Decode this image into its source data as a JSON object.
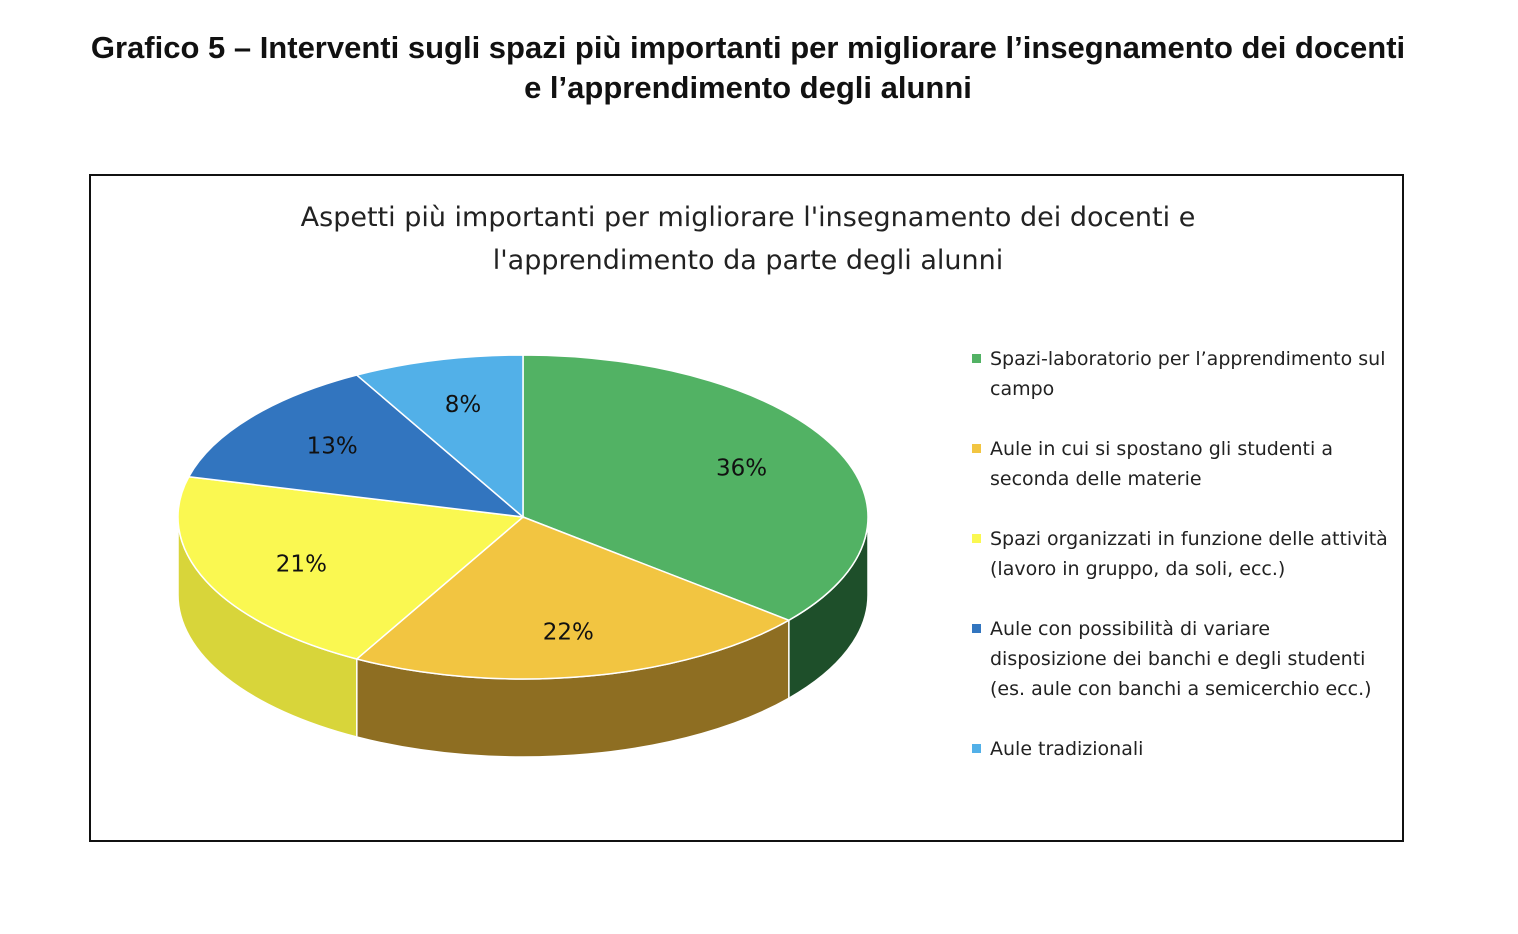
{
  "document_title": [
    "Grafico 5 – Interventi sugli spazi più importanti per migliorare l’insegnamento dei docenti",
    "e l’apprendimento degli alunni"
  ],
  "chart_data": {
    "type": "pie",
    "title": [
      "Aspetti più importanti per migliorare l'insegnamento dei docenti e",
      "l'apprendimento da parte degli alunni"
    ],
    "legend_position": "right",
    "slices": [
      {
        "label": "Spazi-laboratorio per l’apprendimento sul campo",
        "value": 36,
        "data_label": "36%",
        "color": "#52B264",
        "side": "#1E4F2A"
      },
      {
        "label": "Aule in cui si spostano gli studenti a seconda delle materie",
        "value": 22,
        "data_label": "22%",
        "color": "#F2C541",
        "side": "#8E6E22"
      },
      {
        "label": "Spazi organizzati in funzione delle attività (lavoro in gruppo, da soli, ecc.)",
        "value": 21,
        "data_label": "21%",
        "color": "#FAF851",
        "side": "#D8D53A"
      },
      {
        "label": "Aule con possibilità di variare disposizione dei banchi e degli studenti (es. aule con banchi a semicerchio ecc.)",
        "value": 13,
        "data_label": "13%",
        "color": "#3275BF",
        "side": "#1F4D80"
      },
      {
        "label": "Aule tradizionali",
        "value": 8,
        "data_label": "8%",
        "color": "#52B0E8",
        "side": "#3A86B8"
      }
    ]
  }
}
